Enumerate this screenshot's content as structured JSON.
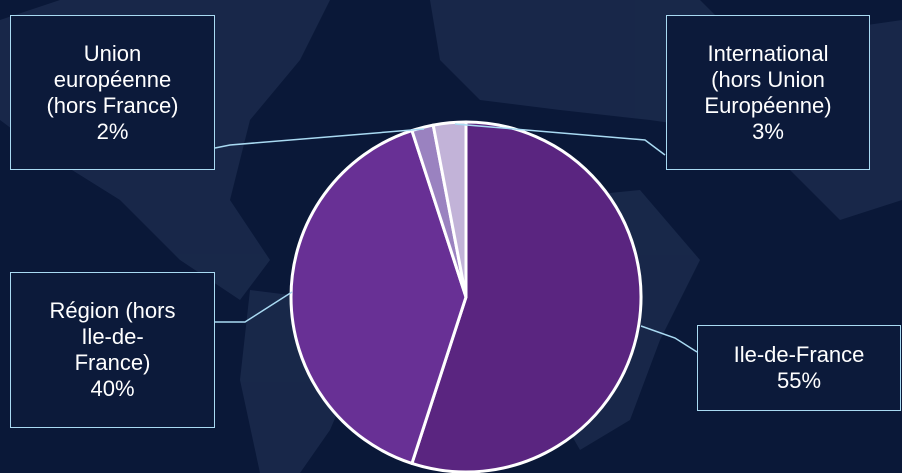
{
  "chart_data": {
    "type": "pie",
    "categories": [
      "Ile-de-France",
      "Région (hors\nIle-de-\nFrance)",
      "Union\neuropéenne\n(hors France)",
      "International\n(hors Union\nEuropéenne)"
    ],
    "values": [
      55,
      40,
      2,
      3
    ],
    "value_labels": [
      "55%",
      "40%",
      "2%",
      "3%"
    ],
    "colors": [
      "#5a2580",
      "#683095",
      "#9a82c0",
      "#c2b3d8"
    ]
  }
}
